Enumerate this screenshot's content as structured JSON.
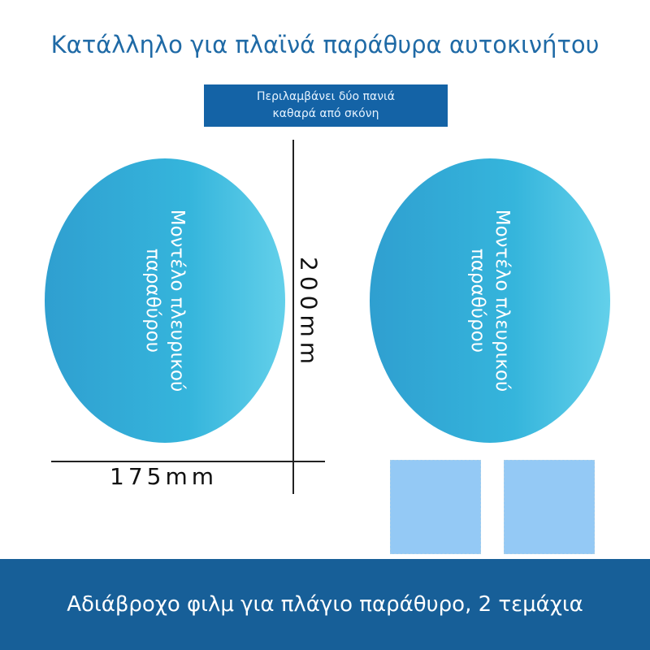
{
  "title": "Κατάλληλο για πλαϊνά παράθυρα αυτοκινήτου",
  "banner": {
    "line1": "Περιλαμβάνει δύο πανιά",
    "line2": "καθαρά από σκόνη"
  },
  "film_left": {
    "line1": "Μοντέλο πλευρικού",
    "line2": "παραθύρου"
  },
  "film_right": {
    "line1": "Μοντέλο πλευρικού",
    "line2": "παραθύρου"
  },
  "dimensions": {
    "height": "200mm",
    "width": "175mm"
  },
  "footer": "Αδιάβροχο φιλμ για πλάγιο παράθυρο, 2 τεμάχια",
  "colors": {
    "accent": "#1f6aa6",
    "footer_bg": "#175f98",
    "film": "#35b5dc",
    "cloth": "#94c9f5"
  }
}
